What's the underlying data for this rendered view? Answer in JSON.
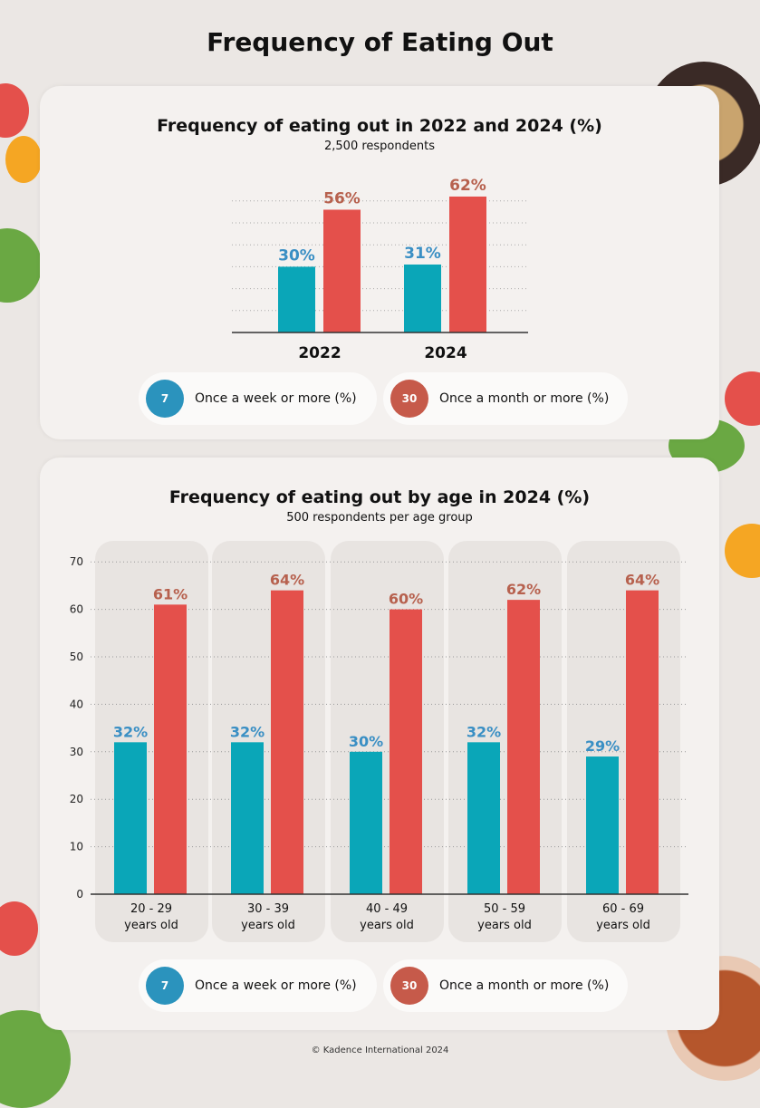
{
  "title": "Frequency of Eating Out",
  "footer": "© Kadence International 2024",
  "colors": {
    "weekly": "#0aa6b8",
    "monthly": "#e4504b",
    "weekly_label": "#3a8fc4",
    "monthly_label": "#b7614e"
  },
  "legend": {
    "weekly": "Once a week or more (%)",
    "monthly": "Once a month or more (%)",
    "weekly_icon": "calendar-7-icon",
    "monthly_icon": "calendar-30-icon",
    "weekly_icon_text": "7",
    "monthly_icon_text": "30"
  },
  "chart_data": [
    {
      "type": "bar",
      "title": "Frequency of eating out in 2022 and 2024 (%)",
      "subtitle": "2,500 respondents",
      "categories": [
        "2022",
        "2024"
      ],
      "series": [
        {
          "name": "Once a week or more (%)",
          "values": [
            30,
            31
          ],
          "labels": [
            "30%",
            "31%"
          ]
        },
        {
          "name": "Once a month or more (%)",
          "values": [
            56,
            62
          ],
          "labels": [
            "56%",
            "62%"
          ]
        }
      ],
      "ylim": [
        0,
        70
      ],
      "grid": true,
      "legend": "bottom"
    },
    {
      "type": "bar",
      "title": "Frequency of eating out by age in 2024 (%)",
      "subtitle": "500 respondents per age group",
      "categories": [
        [
          "20 - 29",
          "years old"
        ],
        [
          "30 - 39",
          "years old"
        ],
        [
          "40 - 49",
          "years old"
        ],
        [
          "50 - 59",
          "years old"
        ],
        [
          "60 - 69",
          "years old"
        ]
      ],
      "series": [
        {
          "name": "Once a week or more (%)",
          "values": [
            32,
            32,
            30,
            32,
            29
          ],
          "labels": [
            "32%",
            "32%",
            "30%",
            "32%",
            "29%"
          ]
        },
        {
          "name": "Once a month or more (%)",
          "values": [
            61,
            64,
            60,
            62,
            64
          ],
          "labels": [
            "61%",
            "64%",
            "60%",
            "62%",
            "64%"
          ]
        }
      ],
      "yticks": [
        "0",
        "10",
        "20",
        "30",
        "40",
        "50",
        "60",
        "70"
      ],
      "ylim": [
        0,
        70
      ],
      "grid": true,
      "legend": "bottom"
    }
  ]
}
